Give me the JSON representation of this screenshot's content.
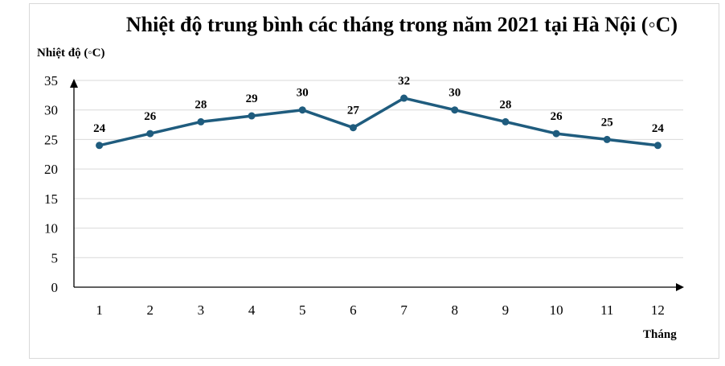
{
  "chart_data": {
    "type": "line",
    "title": "Nhiệt độ trung bình các tháng trong năm 2021 tại Hà Nội (◦C)",
    "ylabel": "Nhiệt độ (◦C)",
    "xlabel": "Tháng",
    "categories": [
      "1",
      "2",
      "3",
      "4",
      "5",
      "6",
      "7",
      "8",
      "9",
      "10",
      "11",
      "12"
    ],
    "series": [
      {
        "values": [
          24,
          26,
          28,
          29,
          30,
          27,
          32,
          30,
          28,
          26,
          25,
          24
        ]
      }
    ],
    "ylim": [
      0,
      35
    ],
    "yticks": [
      0,
      5,
      10,
      15,
      20,
      25,
      30,
      35
    ],
    "data_labels": true,
    "grid": true,
    "line_color": "#1f5c7e"
  }
}
